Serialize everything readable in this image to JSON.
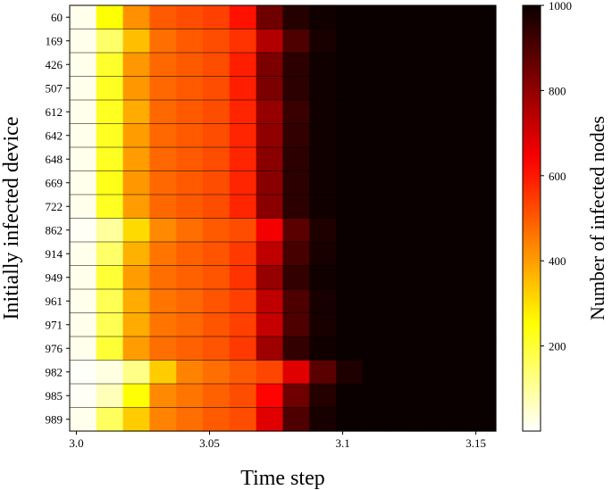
{
  "chart_data": {
    "type": "heatmap",
    "xlabel": "Time step",
    "ylabel": "Initially infected device",
    "colorbar_label": "Number of infected nodes",
    "colormap": "hot_r",
    "vmin": 0,
    "vmax": 1000,
    "xlim": [
      2.9975,
      3.1575
    ],
    "x_ticks": [
      {
        "value": 3.0,
        "label": "3.0"
      },
      {
        "value": 3.05,
        "label": "3.05"
      },
      {
        "value": 3.1,
        "label": "3.1"
      },
      {
        "value": 3.15,
        "label": "3.15"
      }
    ],
    "colorbar_ticks": [
      {
        "value": 200,
        "label": "200"
      },
      {
        "value": 400,
        "label": "400"
      },
      {
        "value": 600,
        "label": "600"
      },
      {
        "value": 800,
        "label": "800"
      },
      {
        "value": 1000,
        "label": "1000"
      }
    ],
    "time_steps": [
      3.0,
      3.01,
      3.02,
      3.03,
      3.04,
      3.05,
      3.06,
      3.07,
      3.08,
      3.09,
      3.1,
      3.11,
      3.12,
      3.13,
      3.14,
      3.15
    ],
    "devices": [
      "60",
      "169",
      "426",
      "507",
      "612",
      "642",
      "648",
      "669",
      "722",
      "862",
      "914",
      "949",
      "961",
      "971",
      "976",
      "982",
      "985",
      "989"
    ],
    "values": [
      [
        20,
        250,
        420,
        500,
        520,
        540,
        610,
        850,
        960,
        990,
        1000,
        1000,
        1000,
        1000,
        1000,
        1000
      ],
      [
        20,
        150,
        350,
        470,
        500,
        520,
        560,
        750,
        900,
        980,
        1000,
        1000,
        1000,
        1000,
        1000,
        1000
      ],
      [
        20,
        210,
        410,
        480,
        500,
        520,
        590,
        830,
        950,
        990,
        1000,
        1000,
        1000,
        1000,
        1000,
        1000
      ],
      [
        20,
        220,
        410,
        480,
        500,
        520,
        590,
        830,
        950,
        990,
        1000,
        1000,
        1000,
        1000,
        1000,
        1000
      ],
      [
        20,
        220,
        380,
        480,
        500,
        520,
        580,
        790,
        930,
        990,
        1000,
        1000,
        1000,
        1000,
        1000,
        1000
      ],
      [
        20,
        220,
        400,
        480,
        500,
        520,
        580,
        800,
        940,
        990,
        1000,
        1000,
        1000,
        1000,
        1000,
        1000
      ],
      [
        20,
        220,
        400,
        480,
        500,
        520,
        580,
        810,
        950,
        990,
        1000,
        1000,
        1000,
        1000,
        1000,
        1000
      ],
      [
        20,
        230,
        410,
        480,
        500,
        520,
        580,
        810,
        950,
        990,
        1000,
        1000,
        1000,
        1000,
        1000,
        1000
      ],
      [
        20,
        220,
        400,
        480,
        500,
        520,
        580,
        810,
        950,
        990,
        1000,
        1000,
        1000,
        1000,
        1000,
        1000
      ],
      [
        10,
        100,
        310,
        430,
        470,
        500,
        520,
        650,
        880,
        970,
        1000,
        1000,
        1000,
        1000,
        1000,
        1000
      ],
      [
        20,
        150,
        370,
        460,
        490,
        510,
        550,
        730,
        910,
        980,
        1000,
        1000,
        1000,
        1000,
        1000,
        1000
      ],
      [
        20,
        200,
        400,
        470,
        490,
        510,
        560,
        790,
        940,
        990,
        1000,
        1000,
        1000,
        1000,
        1000,
        1000
      ],
      [
        20,
        170,
        380,
        460,
        480,
        510,
        540,
        730,
        900,
        980,
        1000,
        1000,
        1000,
        1000,
        1000,
        1000
      ],
      [
        20,
        170,
        380,
        460,
        480,
        510,
        540,
        720,
        900,
        980,
        1000,
        1000,
        1000,
        1000,
        1000,
        1000
      ],
      [
        20,
        200,
        400,
        470,
        490,
        510,
        550,
        780,
        940,
        990,
        1000,
        1000,
        1000,
        1000,
        1000,
        1000
      ],
      [
        5,
        30,
        120,
        330,
        440,
        470,
        500,
        530,
        680,
        880,
        970,
        1000,
        1000,
        1000,
        1000,
        1000
      ],
      [
        10,
        70,
        250,
        430,
        460,
        490,
        520,
        630,
        850,
        960,
        1000,
        1000,
        1000,
        1000,
        1000,
        1000
      ],
      [
        20,
        160,
        330,
        440,
        470,
        500,
        520,
        680,
        900,
        980,
        1000,
        1000,
        1000,
        1000,
        1000,
        1000
      ]
    ]
  }
}
